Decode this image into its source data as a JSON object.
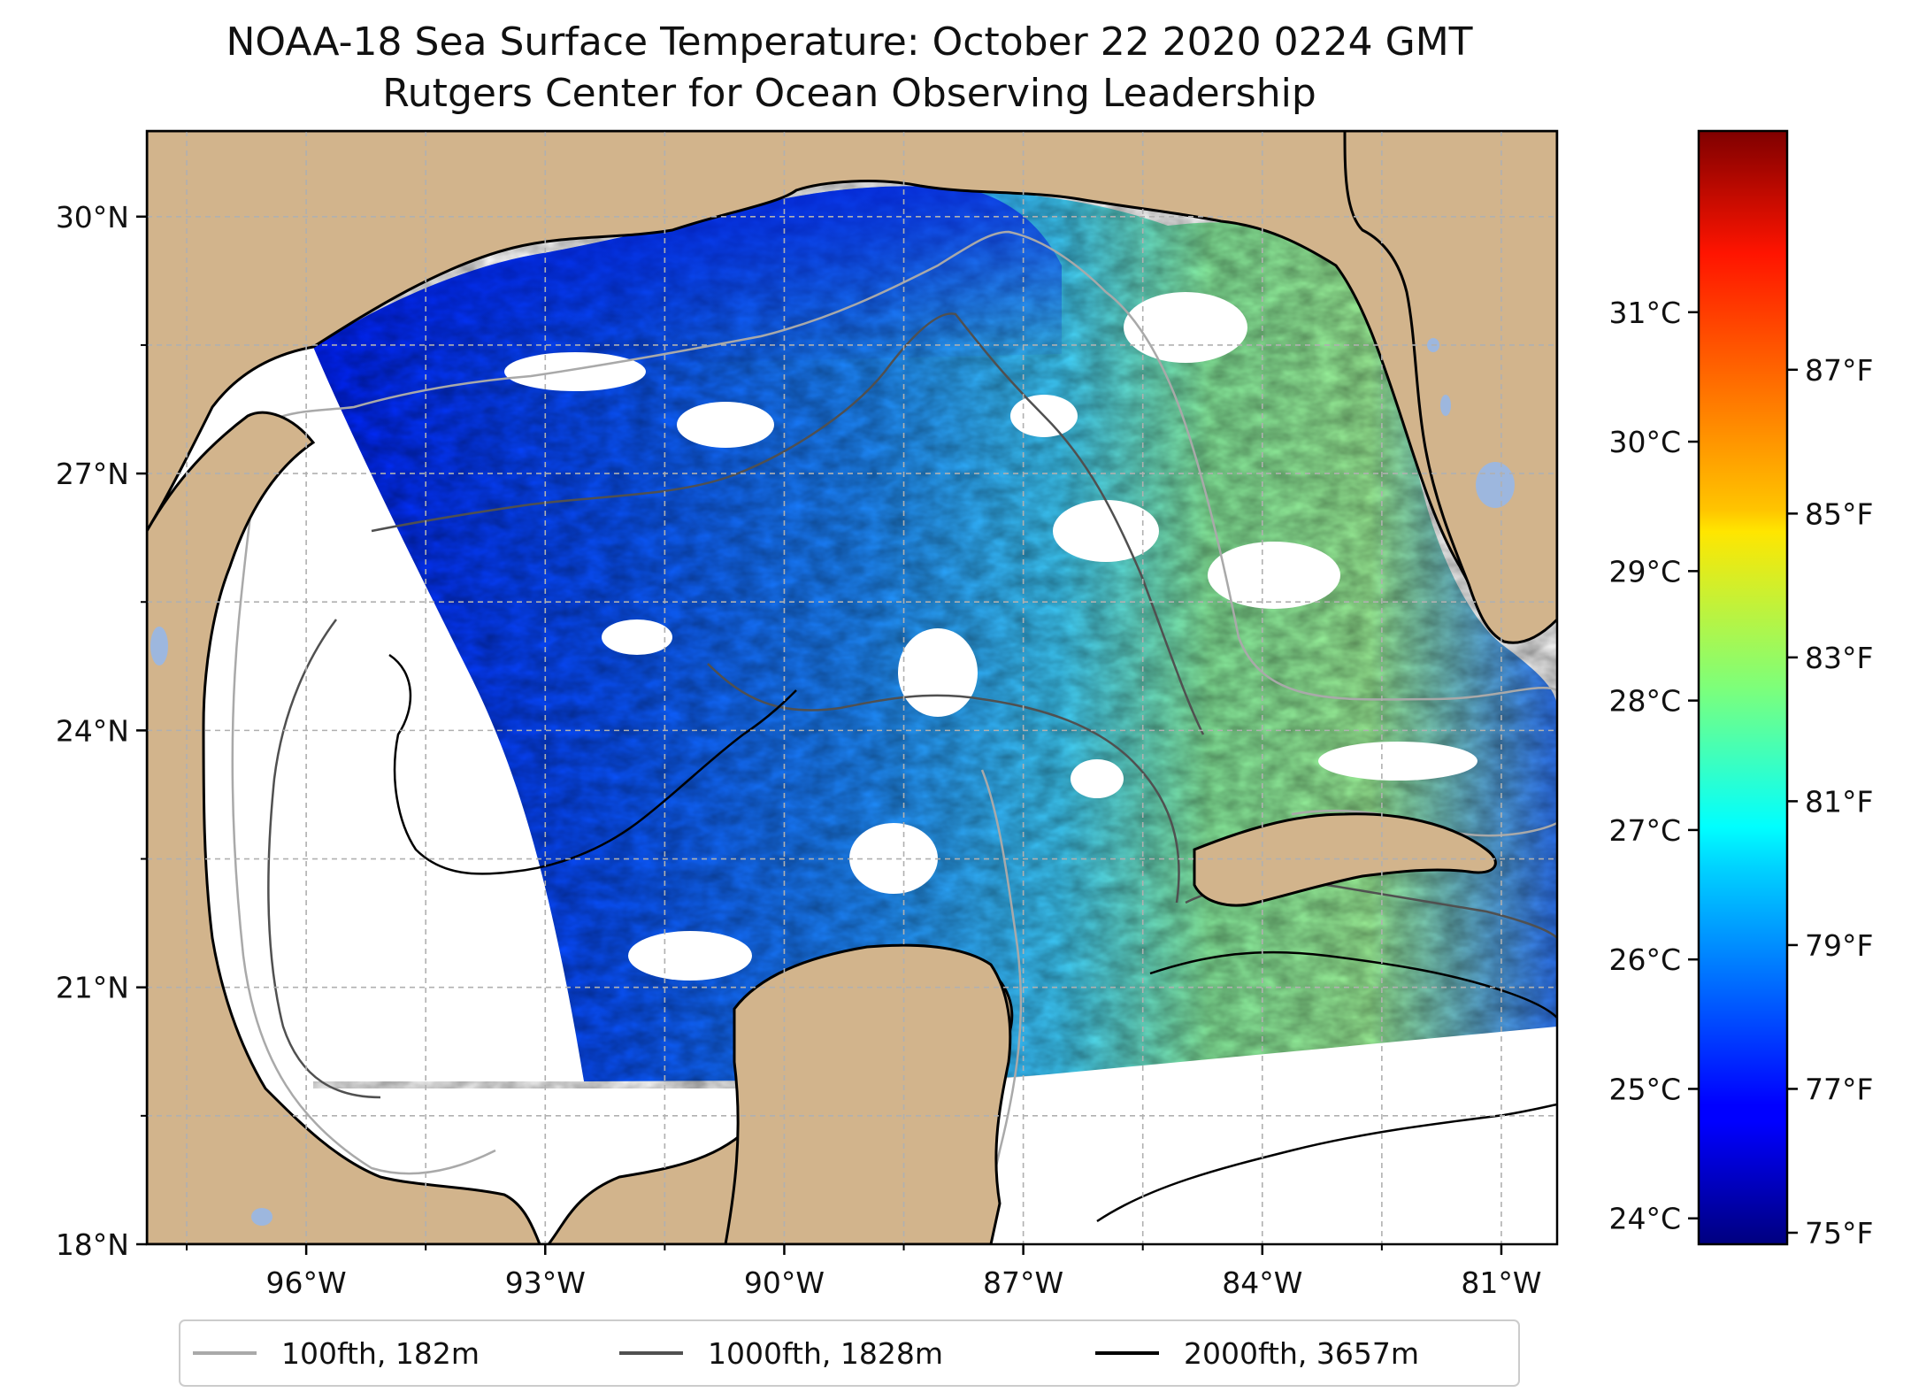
{
  "title": {
    "line1": "NOAA-18 Sea Surface Temperature: October 22 2020 0224 GMT",
    "line2": "Rutgers Center for Ocean Observing Leadership"
  },
  "map": {
    "lon_range": [
      -98,
      -80.3
    ],
    "lat_range": [
      18,
      31
    ],
    "lon_ticks": [
      {
        "value": -96,
        "label": "96°W"
      },
      {
        "value": -93,
        "label": "93°W"
      },
      {
        "value": -90,
        "label": "90°W"
      },
      {
        "value": -87,
        "label": "87°W"
      },
      {
        "value": -84,
        "label": "84°W"
      },
      {
        "value": -81,
        "label": "81°W"
      }
    ],
    "lat_ticks": [
      {
        "value": 18,
        "label": "18°N"
      },
      {
        "value": 21,
        "label": "21°N"
      },
      {
        "value": 24,
        "label": "24°N"
      },
      {
        "value": 27,
        "label": "27°N"
      },
      {
        "value": 30,
        "label": "30°N"
      }
    ],
    "grid": true,
    "colors": {
      "land": "#d2b48c",
      "water": "#ffffff",
      "lakes": "#9db7de",
      "grid": "#b0b0b0"
    }
  },
  "colorbar": {
    "colormap": "jet",
    "celsius_range": [
      23.8,
      32.4
    ],
    "celsius_ticks": [
      {
        "value": 24,
        "label": "24°C"
      },
      {
        "value": 25,
        "label": "25°C"
      },
      {
        "value": 26,
        "label": "26°C"
      },
      {
        "value": 27,
        "label": "27°C"
      },
      {
        "value": 28,
        "label": "28°C"
      },
      {
        "value": 29,
        "label": "29°C"
      },
      {
        "value": 30,
        "label": "30°C"
      },
      {
        "value": 31,
        "label": "31°C"
      }
    ],
    "fahrenheit_ticks": [
      {
        "value": 75,
        "label": "75°F"
      },
      {
        "value": 77,
        "label": "77°F"
      },
      {
        "value": 79,
        "label": "79°F"
      },
      {
        "value": 81,
        "label": "81°F"
      },
      {
        "value": 83,
        "label": "83°F"
      },
      {
        "value": 85,
        "label": "85°F"
      },
      {
        "value": 87,
        "label": "87°F"
      }
    ]
  },
  "legend": {
    "items": [
      {
        "label": "100fth, 182m",
        "color": "#a9a9a9"
      },
      {
        "label": "1000fth, 1828m",
        "color": "#505050"
      },
      {
        "label": "2000fth, 3657m",
        "color": "#000000"
      }
    ]
  }
}
